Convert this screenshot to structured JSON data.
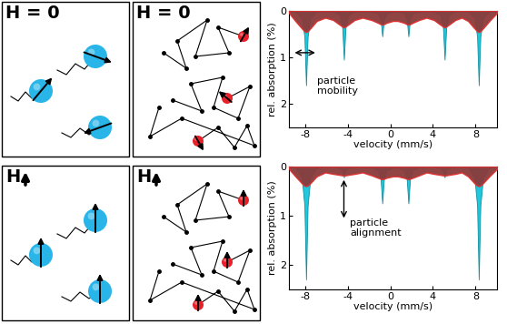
{
  "panels": [
    {
      "label": "H = 0"
    },
    {
      "label": "H = 0"
    },
    {
      "label": "H"
    },
    {
      "label": "H"
    }
  ],
  "chart_data": [
    {
      "type": "area",
      "x": [
        -9.5,
        -8.9,
        -8.3,
        -8.05,
        -7.9,
        -7.75,
        -7.5,
        -6.9,
        -6.1,
        -5.35,
        -4.75,
        -4.5,
        -4.35,
        -4.2,
        -3.95,
        -3.35,
        -2.6,
        -1.75,
        -1.15,
        -0.9,
        -0.75,
        -0.6,
        -0.35,
        0.25,
        0.7,
        1.3,
        1.55,
        1.7,
        1.85,
        2.1,
        2.7,
        3.4,
        4.1,
        4.7,
        4.95,
        5.1,
        5.25,
        5.5,
        6.1,
        6.7,
        7.3,
        7.9,
        8.15,
        8.3,
        8.45,
        8.7,
        9.3,
        10
      ],
      "series": [
        {
          "color": "#1fc8dc",
          "values": [
            0.01,
            0.02,
            0.16,
            0.56,
            1.6,
            0.56,
            0.16,
            0.02,
            0.01,
            0.02,
            0.1,
            0.37,
            1.05,
            0.37,
            0.1,
            0.02,
            0.01,
            0.02,
            0.06,
            0.19,
            0.55,
            0.19,
            0.06,
            0.02,
            0.02,
            0.06,
            0.19,
            0.55,
            0.19,
            0.06,
            0.02,
            0.01,
            0.02,
            0.1,
            0.37,
            1.05,
            0.37,
            0.1,
            0.02,
            0.01,
            0.02,
            0.16,
            0.56,
            1.6,
            0.56,
            0.16,
            0.02,
            0.01
          ]
        },
        {
          "color": "#8b3a3a",
          "values": [
            0.05,
            0.22,
            0.38,
            0.44,
            0.46,
            0.44,
            0.38,
            0.22,
            0.15,
            0.2,
            0.3,
            0.34,
            0.36,
            0.34,
            0.3,
            0.2,
            0.15,
            0.2,
            0.26,
            0.29,
            0.3,
            0.29,
            0.26,
            0.22,
            0.22,
            0.26,
            0.29,
            0.3,
            0.29,
            0.26,
            0.2,
            0.15,
            0.2,
            0.3,
            0.34,
            0.36,
            0.34,
            0.3,
            0.2,
            0.15,
            0.22,
            0.38,
            0.44,
            0.46,
            0.44,
            0.38,
            0.22,
            0.05
          ]
        }
      ],
      "xlim": [
        -9.5,
        10
      ],
      "ylim": [
        2.5,
        0
      ],
      "xticks": [
        -8,
        -4,
        0,
        4,
        8
      ],
      "yticks": [
        0,
        1,
        2
      ],
      "x_label": "velocity (mm/s)",
      "y_label": "rel. absorption (%)",
      "annotation": "particle\nmobility"
    },
    {
      "type": "area",
      "x": [
        -9.5,
        -8.9,
        -8.3,
        -8.05,
        -7.9,
        -7.75,
        -7.5,
        -6.9,
        -6.1,
        -5.35,
        -4.75,
        -4.5,
        -4.35,
        -4.2,
        -3.95,
        -3.35,
        -2.6,
        -1.75,
        -1.15,
        -0.9,
        -0.75,
        -0.6,
        -0.35,
        0.25,
        0.7,
        1.3,
        1.55,
        1.7,
        1.85,
        2.1,
        2.7,
        3.4,
        4.1,
        4.7,
        4.95,
        5.1,
        5.25,
        5.5,
        6.1,
        6.7,
        7.3,
        7.9,
        8.15,
        8.3,
        8.45,
        8.7,
        9.3,
        10
      ],
      "series": [
        {
          "color": "#1fc8dc",
          "values": [
            0.01,
            0.02,
            0.23,
            0.8,
            2.3,
            0.8,
            0.23,
            0.02,
            0.01,
            0.01,
            0.03,
            0.08,
            0.22,
            0.08,
            0.03,
            0.01,
            0.01,
            0.02,
            0.08,
            0.26,
            0.75,
            0.26,
            0.08,
            0.02,
            0.02,
            0.08,
            0.26,
            0.75,
            0.26,
            0.08,
            0.02,
            0.01,
            0.01,
            0.03,
            0.08,
            0.22,
            0.08,
            0.03,
            0.01,
            0.01,
            0.02,
            0.23,
            0.8,
            2.3,
            0.8,
            0.23,
            0.02,
            0.01
          ]
        },
        {
          "color": "#8b3a3a",
          "values": [
            0.05,
            0.2,
            0.34,
            0.39,
            0.4,
            0.39,
            0.34,
            0.2,
            0.12,
            0.15,
            0.17,
            0.18,
            0.18,
            0.18,
            0.17,
            0.15,
            0.12,
            0.18,
            0.23,
            0.25,
            0.26,
            0.25,
            0.23,
            0.2,
            0.2,
            0.23,
            0.25,
            0.26,
            0.25,
            0.23,
            0.18,
            0.12,
            0.15,
            0.17,
            0.18,
            0.18,
            0.18,
            0.17,
            0.15,
            0.12,
            0.2,
            0.34,
            0.39,
            0.4,
            0.39,
            0.34,
            0.2,
            0.05
          ]
        }
      ],
      "xlim": [
        -9.5,
        10
      ],
      "ylim": [
        2.5,
        0
      ],
      "xticks": [
        -8,
        -4,
        0,
        4,
        8
      ],
      "yticks": [
        0,
        1,
        2
      ],
      "x_label": "velocity (mm/s)",
      "y_label": "rel. absorption (%)",
      "annotation": "particle\nalignment"
    }
  ]
}
